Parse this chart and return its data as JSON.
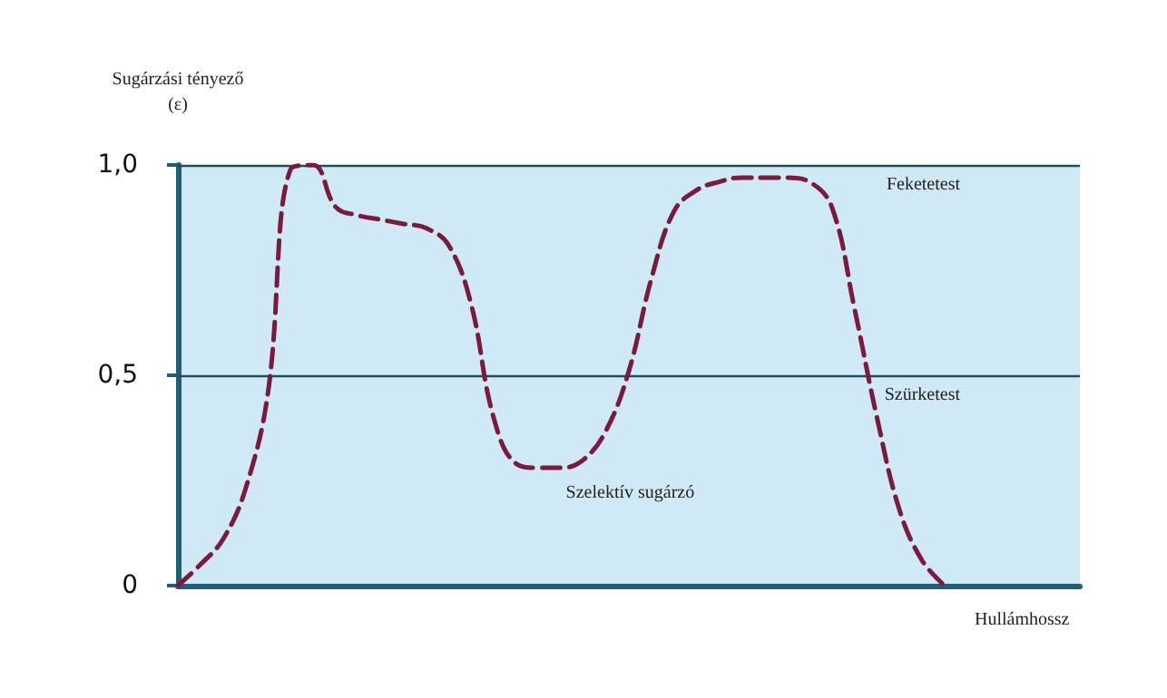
{
  "chart_data": {
    "type": "line",
    "ylabel": "Sugárzási tényező\n(ε)",
    "xlabel": "Hullámhossz",
    "categories": [
      null,
      null,
      null,
      null,
      null,
      null,
      null,
      null,
      null,
      null,
      null,
      null,
      null,
      null,
      null,
      null,
      null,
      null,
      null,
      null,
      null,
      null,
      null,
      null,
      null,
      null,
      null,
      null,
      null,
      null,
      null,
      null,
      null,
      null,
      null,
      null,
      null,
      null,
      null,
      null,
      null
    ],
    "series": [
      {
        "name": "Szelektív sugárzó",
        "color": "#7b1a3a",
        "values": [
          0,
          0.05,
          0.11,
          0.23,
          0.46,
          0.99,
          1.0,
          0.9,
          0.88,
          0.87,
          0.86,
          0.85,
          0.81,
          0.67,
          0.4,
          0.29,
          0.28,
          0.28,
          0.3,
          0.37,
          0.51,
          0.73,
          0.89,
          0.94,
          0.96,
          0.97,
          0.97,
          0.97,
          0.96,
          0.9,
          0.66,
          0.4,
          0.18,
          0.06,
          0,
          null,
          null,
          null,
          null,
          null,
          null
        ]
      }
    ],
    "ylim": [
      0,
      1
    ],
    "yticks": [
      0,
      {
        "value": 0.5,
        "label": "0,5"
      },
      {
        "value": 1,
        "label": "1,0"
      }
    ],
    "ref_lines": [
      {
        "axis": "y",
        "value": 1,
        "label": "Feketetest",
        "color": "#1f4e5a"
      },
      {
        "axis": "y",
        "value": 0.5,
        "label": "Szürketest",
        "color": "#1f4e5a"
      }
    ],
    "tick_labels": "y",
    "grid": false,
    "legend": false,
    "marker": "none",
    "line_style": "dashed"
  }
}
